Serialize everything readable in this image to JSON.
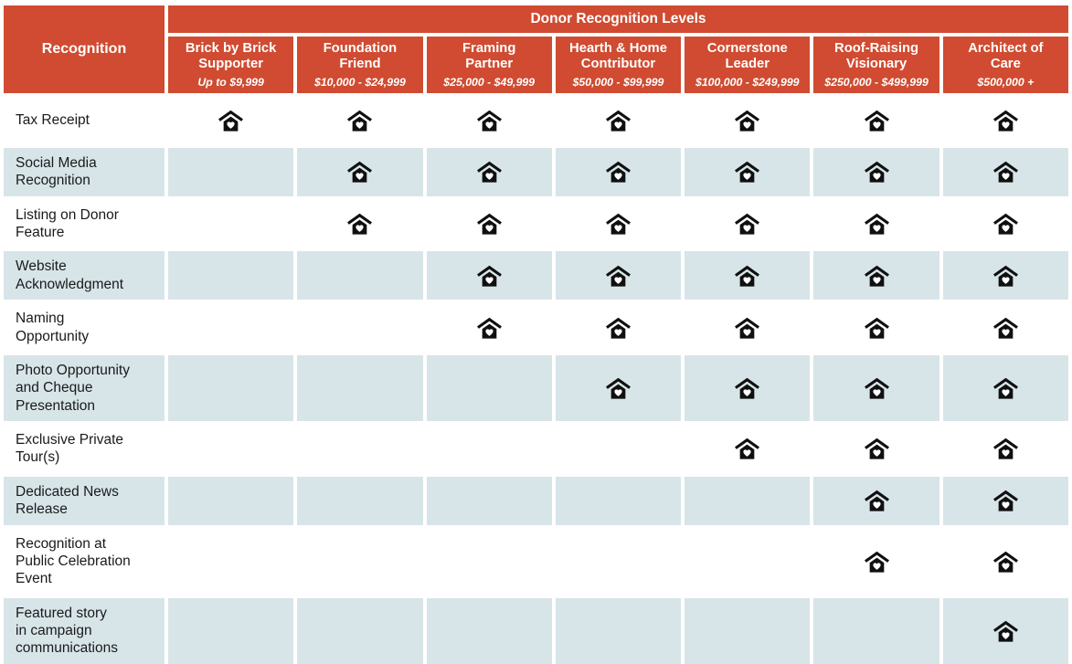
{
  "table": {
    "banner": "Donor Recognition Levels",
    "corner_label": "Recognition",
    "icon_name": "house-heart-icon",
    "icon_meaning": "benefit included",
    "columns": [
      {
        "title": "Brick by Brick\nSupporter",
        "range": "Up to $9,999"
      },
      {
        "title": "Foundation\nFriend",
        "range": "$10,000 - $24,999"
      },
      {
        "title": "Framing\nPartner",
        "range": "$25,000 - $49,999"
      },
      {
        "title": "Hearth & Home\nContributor",
        "range": "$50,000 - $99,999"
      },
      {
        "title": "Cornerstone\nLeader",
        "range": "$100,000 - $249,999"
      },
      {
        "title": "Roof-Raising\nVisionary",
        "range": "$250,000 - $499,999"
      },
      {
        "title": "Architect of\nCare",
        "range": "$500,000 +"
      }
    ],
    "rows": [
      {
        "label": "Tax Receipt",
        "benefits": [
          true,
          true,
          true,
          true,
          true,
          true,
          true
        ]
      },
      {
        "label": "Social Media\nRecognition",
        "benefits": [
          false,
          true,
          true,
          true,
          true,
          true,
          true
        ]
      },
      {
        "label": "Listing on Donor\nFeature",
        "benefits": [
          false,
          true,
          true,
          true,
          true,
          true,
          true
        ]
      },
      {
        "label": "Website\nAcknowledgment",
        "benefits": [
          false,
          false,
          true,
          true,
          true,
          true,
          true
        ]
      },
      {
        "label": "Naming\nOpportunity",
        "benefits": [
          false,
          false,
          true,
          true,
          true,
          true,
          true
        ]
      },
      {
        "label": "Photo Opportunity\nand Cheque\nPresentation",
        "benefits": [
          false,
          false,
          false,
          true,
          true,
          true,
          true
        ]
      },
      {
        "label": "Exclusive Private\nTour(s)",
        "benefits": [
          false,
          false,
          false,
          false,
          true,
          true,
          true
        ]
      },
      {
        "label": "Dedicated News\nRelease",
        "benefits": [
          false,
          false,
          false,
          false,
          false,
          true,
          true
        ]
      },
      {
        "label": "Recognition at\nPublic Celebration\nEvent",
        "benefits": [
          false,
          false,
          false,
          false,
          false,
          true,
          true
        ]
      },
      {
        "label": "Featured story\nin campaign\ncommunications",
        "benefits": [
          false,
          false,
          false,
          false,
          false,
          false,
          true
        ]
      }
    ]
  },
  "colors": {
    "header_red": "#D04B31",
    "row_alt_blue": "#D7E5E9",
    "icon_black": "#101010",
    "text_dark": "#1A1A1A",
    "header_text": "#FFFFFF"
  }
}
